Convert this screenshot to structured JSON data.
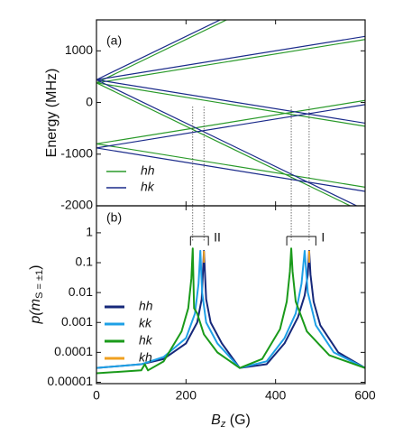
{
  "chart_data": [
    {
      "type": "line",
      "panel_label": "(a)",
      "ylabel": "Energy (MHz)",
      "xlim": [
        0,
        600
      ],
      "xticks": [
        0,
        200,
        400,
        600
      ],
      "ylim": [
        -2000,
        1600
      ],
      "yticks": [
        1000,
        0,
        -1000,
        -2000
      ],
      "markers": [
        215,
        240,
        435,
        475
      ],
      "series": [
        {
          "name": "hh",
          "color": "#2a9a2a",
          "lines": [
            {
              "x": [
                0,
                600
              ],
              "values": [
                380,
                2900
              ]
            },
            {
              "x": [
                0,
                600
              ],
              "values": [
                380,
                1220
              ]
            },
            {
              "x": [
                0,
                600
              ],
              "values": [
                380,
                -460
              ]
            },
            {
              "x": [
                0,
                600
              ],
              "values": [
                380,
                -2140
              ]
            },
            {
              "x": [
                0,
                600
              ],
              "values": [
                -800,
                40
              ]
            },
            {
              "x": [
                0,
                600
              ],
              "values": [
                -800,
                -1640
              ]
            }
          ]
        },
        {
          "name": "hk",
          "color": "#1a2a8a",
          "lines": [
            {
              "x": [
                0,
                600
              ],
              "values": [
                440,
                2960
              ]
            },
            {
              "x": [
                0,
                600
              ],
              "values": [
                440,
                1280
              ]
            },
            {
              "x": [
                0,
                600
              ],
              "values": [
                440,
                -400
              ]
            },
            {
              "x": [
                0,
                600
              ],
              "values": [
                440,
                -2080
              ]
            },
            {
              "x": [
                0,
                600
              ],
              "values": [
                -880,
                -40
              ]
            },
            {
              "x": [
                0,
                600
              ],
              "values": [
                -880,
                -1720
              ]
            }
          ]
        }
      ]
    },
    {
      "type": "logline",
      "panel_label": "(b)",
      "ylabel_parts": [
        "p(m",
        "S = ±1",
        ")"
      ],
      "xlabel_parts": [
        "B",
        "z",
        " (G)"
      ],
      "xlim": [
        0,
        600
      ],
      "xticks": [
        0,
        200,
        400,
        600
      ],
      "ylim": [
        9e-06,
        8
      ],
      "yticks": [
        1,
        0.1,
        0.01,
        0.001,
        0.0001,
        1e-05
      ],
      "log_y": true,
      "brackets": [
        {
          "label": "II",
          "from": 210,
          "to": 250
        },
        {
          "label": "I",
          "from": 425,
          "to": 490
        }
      ],
      "series": [
        {
          "name": "hh",
          "color": "#16287a",
          "x": [
            0,
            100,
            150,
            200,
            225,
            235,
            240,
            245,
            255,
            280,
            320,
            380,
            420,
            450,
            465,
            472,
            475,
            478,
            485,
            500,
            540,
            600
          ],
          "values": [
            3e-05,
            4e-05,
            6e-05,
            0.0002,
            0.001,
            0.006,
            0.25,
            0.006,
            0.001,
            0.0002,
            3e-05,
            4e-05,
            0.0002,
            0.0015,
            0.008,
            0.04,
            0.25,
            0.04,
            0.005,
            0.0008,
            0.0001,
            3e-05
          ]
        },
        {
          "name": "kk",
          "color": "#1ea0e6",
          "x": [
            0,
            100,
            150,
            200,
            220,
            228,
            232,
            236,
            245,
            270,
            320,
            380,
            420,
            445,
            458,
            465,
            472,
            490,
            530,
            600
          ],
          "values": [
            3e-05,
            4e-05,
            7e-05,
            0.0003,
            0.002,
            0.02,
            0.25,
            0.01,
            0.001,
            0.0002,
            3e-05,
            5e-05,
            0.0003,
            0.002,
            0.02,
            0.25,
            0.01,
            0.0008,
            0.0001,
            3e-05
          ]
        },
        {
          "name": "hk",
          "color": "#1a9a1a",
          "x": [
            0,
            100,
            108,
            115,
            150,
            190,
            205,
            212,
            215,
            218,
            225,
            240,
            270,
            320,
            370,
            410,
            425,
            432,
            435,
            438,
            445,
            470,
            520,
            600
          ],
          "values": [
            2e-05,
            2.5e-05,
            4e-05,
            2.5e-05,
            5e-05,
            0.0005,
            0.003,
            0.03,
            0.3,
            0.003,
            0.002,
            0.0004,
            0.0001,
            3e-05,
            6e-05,
            0.0006,
            0.005,
            0.05,
            0.3,
            0.05,
            0.005,
            0.0005,
            8e-05,
            3e-05
          ]
        },
        {
          "name": "kh",
          "color": "#f0a020",
          "x": [
            240,
            240,
            300,
            475,
            475
          ],
          "values": [
            0.1,
            0.25,
            null,
            0.1,
            0.25
          ]
        }
      ]
    }
  ]
}
